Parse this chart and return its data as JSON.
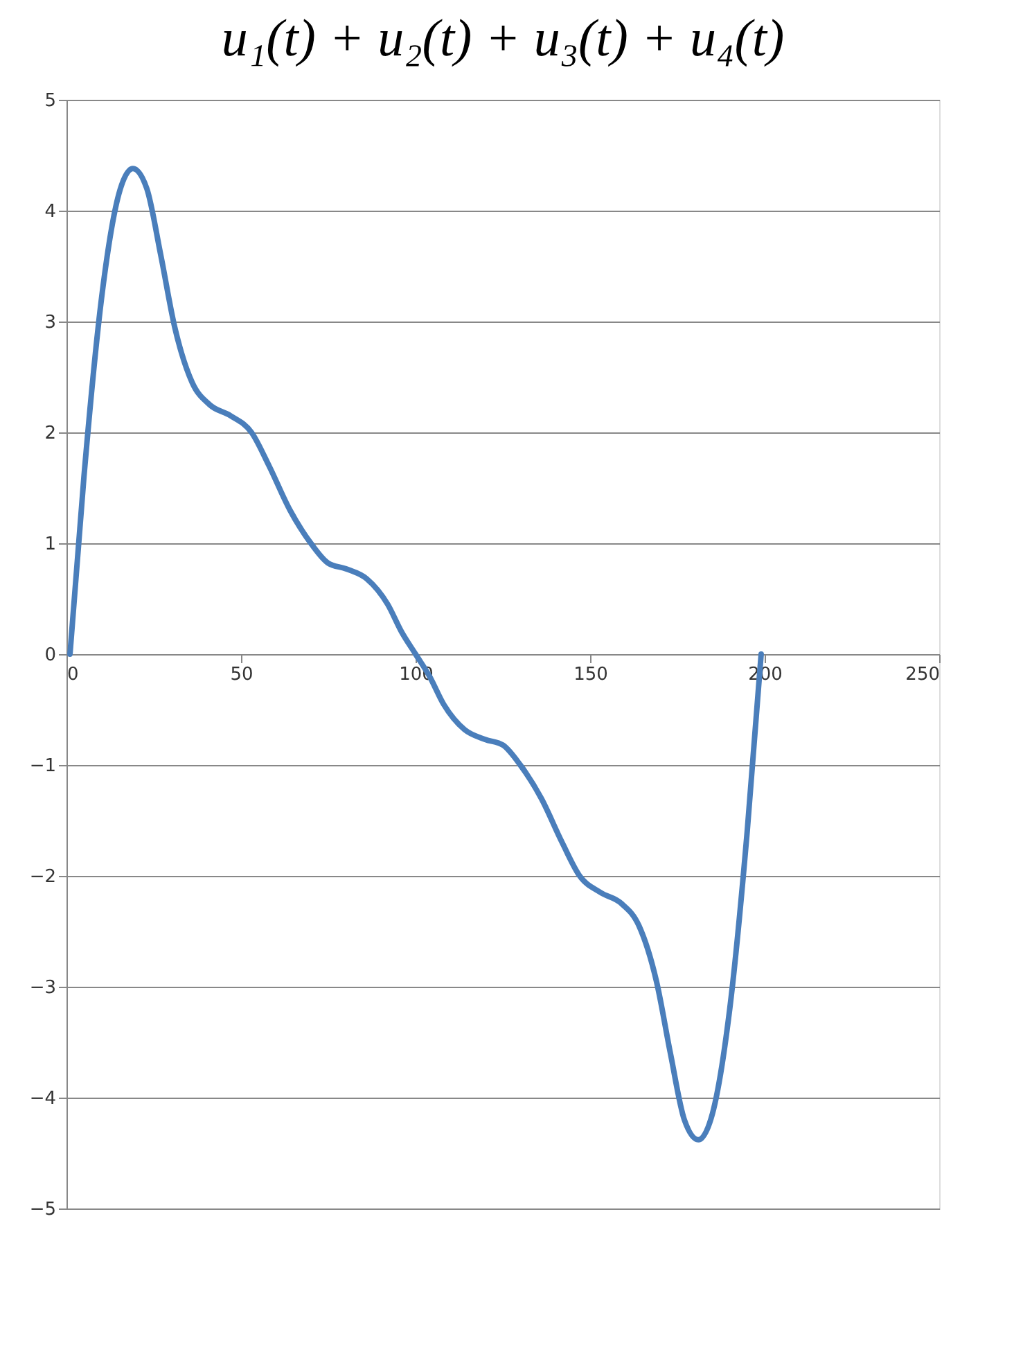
{
  "chart_data": {
    "type": "line",
    "title": "u₁(t) + u₂(t) + u₃(t) + u₄(t)",
    "x": [
      1,
      5,
      10,
      15,
      19,
      23,
      27,
      31,
      36,
      41,
      47,
      53,
      58,
      64,
      70,
      75,
      80,
      86,
      92,
      96,
      100,
      104,
      108,
      114,
      120,
      125,
      130,
      136,
      142,
      147,
      153,
      159,
      164,
      169,
      173,
      177,
      181,
      185,
      190,
      195,
      199
    ],
    "series": [
      {
        "color": "#4a7ebb",
        "values": [
          0,
          1.6,
          3.2,
          4.15,
          4.38,
          4.2,
          3.6,
          2.95,
          2.45,
          2.25,
          2.15,
          2.0,
          1.7,
          1.3,
          1.0,
          0.82,
          0.77,
          0.68,
          0.45,
          0.2,
          0,
          -0.2,
          -0.45,
          -0.68,
          -0.77,
          -0.82,
          -1.0,
          -1.3,
          -1.7,
          -2.0,
          -2.15,
          -2.25,
          -2.45,
          -2.95,
          -3.6,
          -4.2,
          -4.38,
          -4.15,
          -3.2,
          -1.6,
          0
        ]
      }
    ],
    "xlim": [
      0,
      250
    ],
    "xticks": [
      0,
      50,
      100,
      150,
      200,
      250
    ],
    "ylim": [
      -5,
      5
    ],
    "yticks": [
      -5,
      -4,
      -3,
      -2,
      -1,
      0,
      1,
      2,
      3,
      4,
      5
    ],
    "grid": "y",
    "marker": "none",
    "line_style": "solid"
  }
}
